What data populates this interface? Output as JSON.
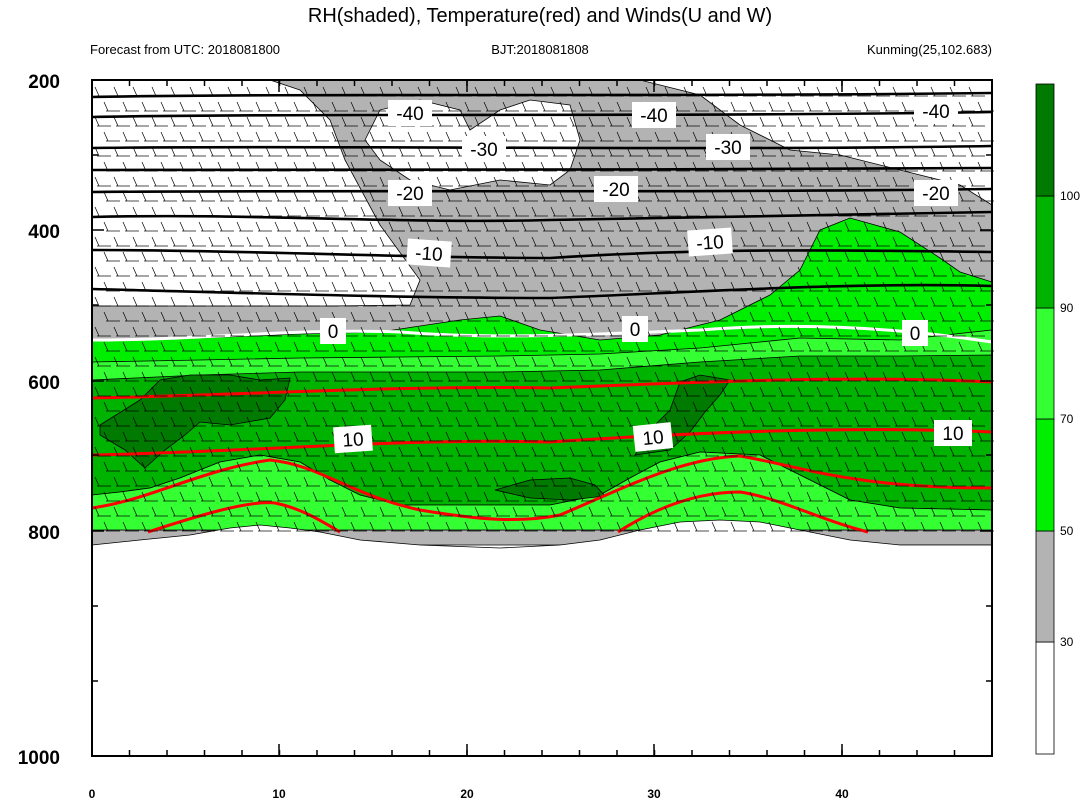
{
  "chart_data": {
    "type": "contour",
    "title": "RH(shaded), Temperature(red) and Winds(U and W)",
    "forecast_label": "Forecast from UTC: 2018081800",
    "bjt_label": "BJT:2018081808",
    "location_label": "Kunming(25,102.683)",
    "xlim": [
      0,
      48
    ],
    "ylim": [
      1000,
      200
    ],
    "x_ticks": [
      "0",
      "10",
      "20",
      "30",
      "40"
    ],
    "y_ticks": [
      "200",
      "400",
      "600",
      "800",
      "1000"
    ],
    "colorbar": {
      "levels": [
        "30",
        "50",
        "70",
        "90",
        "100"
      ],
      "colors": [
        "#ffffff",
        "#b3b3b3",
        "#00ee00",
        "#33ff33",
        "#00b300",
        "#007a00"
      ]
    },
    "temperature_contours": [
      {
        "value": "-40",
        "level_hPa": 258
      },
      {
        "value": "-30",
        "level_hPa": 290
      },
      {
        "value": "-20",
        "level_hPa": 345
      },
      {
        "value": "-10",
        "level_hPa": 430
      },
      {
        "value": "0",
        "level_hPa": 543
      },
      {
        "value": "10",
        "level_hPa": 675
      }
    ],
    "colors": {
      "temperature_line": "#ff0000",
      "freezing_line": "#ffffff",
      "cold_line": "#000000",
      "low_rh": "#b3b3b3",
      "mid_rh": "#00ee00",
      "high_rh": "#33ff33",
      "very_high_rh": "#00b300",
      "saturated": "#007a00"
    }
  }
}
